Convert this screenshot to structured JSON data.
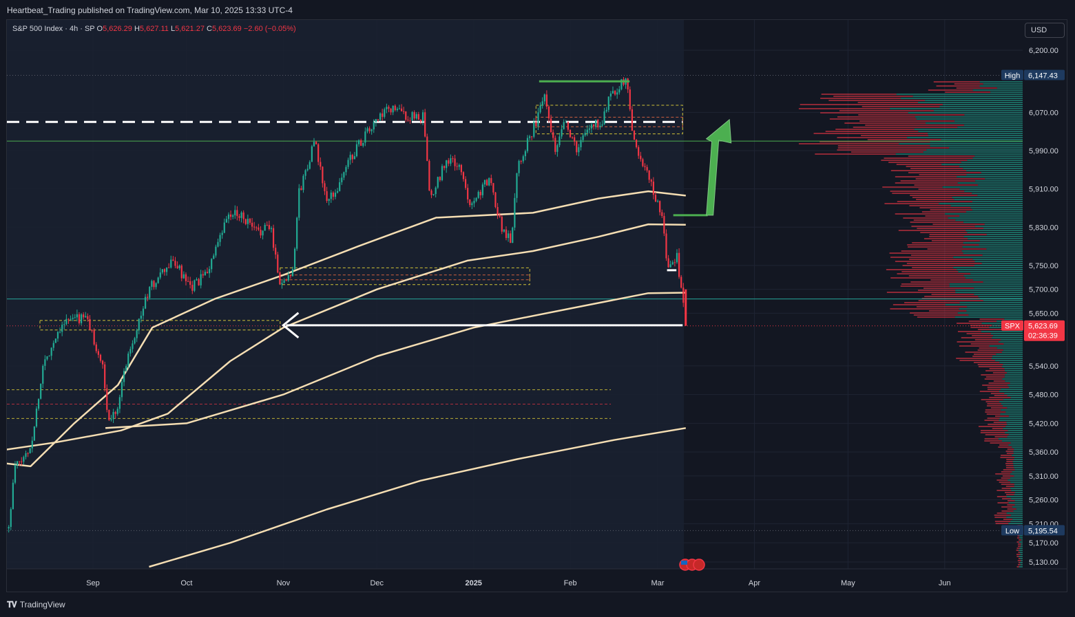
{
  "header": {
    "publisher": "Heartbeat_Trading published on TradingView.com, Mar 10, 2025 13:33 UTC-4"
  },
  "legend": {
    "symbol": "S&P 500 Index · 4h · SP",
    "open_label": "O",
    "open": "5,626.29",
    "high_label": "H",
    "high": "5,627.11",
    "low_label": "L",
    "low": "5,621.27",
    "close_label": "C",
    "close": "5,623.69",
    "change": "−2.60 (−0.05%)"
  },
  "currency_button": "USD",
  "footer": {
    "brand": "TradingView",
    "logo_icon": "tradingview-logo-icon"
  },
  "colors": {
    "up": "#22ab94",
    "down": "#f23645",
    "ma": "#f5deb3",
    "arrow": "#4caf50",
    "price_tag": "#f23645",
    "high_low_tag": "#1e3a5f"
  },
  "chart_data": {
    "type": "candlestick",
    "x_ticks": [
      "Sep",
      "Oct",
      "Nov",
      "Dec",
      "2025",
      "Feb",
      "Mar",
      "Apr",
      "May",
      "Jun"
    ],
    "y_ticks": [
      6200,
      6070,
      5990,
      5910,
      5830,
      5750,
      5700,
      5650,
      5540,
      5480,
      5420,
      5360,
      5310,
      5260,
      5210,
      5170,
      5130
    ],
    "y_tick_labels": [
      "6,200.00",
      "6,070.00",
      "5,990.00",
      "5,910.00",
      "5,830.00",
      "5,750.00",
      "5,700.00",
      "5,650.00",
      "5,540.00",
      "5,480.00",
      "5,420.00",
      "5,360.00",
      "5,310.00",
      "5,260.00",
      "5,210.00",
      "5,170.00",
      "5,130.00"
    ],
    "ylim": [
      5110,
      6230
    ],
    "high": {
      "label": "High",
      "value": "6,147.43"
    },
    "low": {
      "label": "Low",
      "value": "5,195.54"
    },
    "last_price": {
      "symbol": "SPX",
      "value": "5,623.69",
      "countdown": "02:36:39"
    },
    "price_path": [
      [
        "Aug 5",
        5200
      ],
      [
        "Aug 7",
        5330
      ],
      [
        "Aug 9",
        5340
      ],
      [
        "Aug 12",
        5370
      ],
      [
        "Aug 14",
        5450
      ],
      [
        "Aug 16",
        5540
      ],
      [
        "Aug 20",
        5600
      ],
      [
        "Aug 22",
        5630
      ],
      [
        "Aug 27",
        5640
      ],
      [
        "Aug 30",
        5640
      ],
      [
        "Sep 4",
        5540
      ],
      [
        "Sep 6",
        5420
      ],
      [
        "Sep 9",
        5460
      ],
      [
        "Sep 12",
        5560
      ],
      [
        "Sep 16",
        5640
      ],
      [
        "Sep 19",
        5700
      ],
      [
        "Sep 24",
        5740
      ],
      [
        "Sep 27",
        5760
      ],
      [
        "Oct 2",
        5700
      ],
      [
        "Oct 7",
        5730
      ],
      [
        "Oct 11",
        5790
      ],
      [
        "Oct 14",
        5850
      ],
      [
        "Oct 18",
        5860
      ],
      [
        "Oct 23",
        5820
      ],
      [
        "Oct 28",
        5830
      ],
      [
        "Oct 31",
        5710
      ],
      [
        "Nov 4",
        5740
      ],
      [
        "Nov 6",
        5900
      ],
      [
        "Nov 11",
        6010
      ],
      [
        "Nov 15",
        5880
      ],
      [
        "Nov 19",
        5920
      ],
      [
        "Nov 22",
        5970
      ],
      [
        "Nov 27",
        6020
      ],
      [
        "Dec 2",
        6060
      ],
      [
        "Dec 6",
        6080
      ],
      [
        "Dec 11",
        6060
      ],
      [
        "Dec 16",
        6060
      ],
      [
        "Dec 18",
        5880
      ],
      [
        "Dec 23",
        5970
      ],
      [
        "Dec 27",
        5960
      ],
      [
        "Dec 31",
        5880
      ],
      [
        "Jan 6",
        5930
      ],
      [
        "Jan 10",
        5830
      ],
      [
        "Jan 13",
        5800
      ],
      [
        "Jan 15",
        5960
      ],
      [
        "Jan 21",
        6050
      ],
      [
        "Jan 24",
        6110
      ],
      [
        "Jan 27",
        5990
      ],
      [
        "Jan 30",
        6060
      ],
      [
        "Feb 3",
        5990
      ],
      [
        "Feb 7",
        6040
      ],
      [
        "Feb 11",
        6050
      ],
      [
        "Feb 14",
        6110
      ],
      [
        "Feb 19",
        6140
      ],
      [
        "Feb 21",
        6020
      ],
      [
        "Feb 25",
        5950
      ],
      [
        "Feb 28",
        5900
      ],
      [
        "Mar 3",
        5830
      ],
      [
        "Mar 4",
        5750
      ],
      [
        "Mar 6",
        5750
      ],
      [
        "Mar 7",
        5780
      ],
      [
        "Mar 10",
        5623
      ]
    ],
    "moving_averages": [
      {
        "points": [
          [
            "Jul 30",
            5340
          ],
          [
            "Aug 12",
            5330
          ],
          [
            "Aug 26",
            5420
          ],
          [
            "Sep 9",
            5500
          ],
          [
            "Sep 20",
            5620
          ],
          [
            "Oct 10",
            5680
          ],
          [
            "Nov 1",
            5730
          ],
          [
            "Nov 25",
            5790
          ],
          [
            "Dec 20",
            5850
          ],
          [
            "Jan 20",
            5860
          ],
          [
            "Feb 10",
            5890
          ],
          [
            "Feb 26",
            5905
          ],
          [
            "Mar 10",
            5896
          ]
        ]
      },
      {
        "points": [
          [
            "Jul 30",
            5360
          ],
          [
            "Aug 20",
            5380
          ],
          [
            "Sep 10",
            5405
          ],
          [
            "Sep 25",
            5440
          ],
          [
            "Oct 15",
            5550
          ],
          [
            "Nov 1",
            5620
          ],
          [
            "Dec 1",
            5700
          ],
          [
            "Dec 30",
            5760
          ],
          [
            "Jan 20",
            5780
          ],
          [
            "Feb 10",
            5810
          ],
          [
            "Feb 26",
            5836
          ],
          [
            "Mar 10",
            5835
          ]
        ]
      },
      {
        "points": [
          [
            "Sep 5",
            5410
          ],
          [
            "Oct 1",
            5420
          ],
          [
            "Nov 1",
            5480
          ],
          [
            "Dec 1",
            5560
          ],
          [
            "Jan 1",
            5620
          ],
          [
            "Feb 1",
            5660
          ],
          [
            "Feb 26",
            5692
          ],
          [
            "Mar 10",
            5693
          ]
        ]
      },
      {
        "points": [
          [
            "Sep 19",
            5120
          ],
          [
            "Oct 15",
            5170
          ],
          [
            "Nov 15",
            5240
          ],
          [
            "Dec 15",
            5300
          ],
          [
            "Jan 15",
            5345
          ],
          [
            "Feb 15",
            5385
          ],
          [
            "Mar 10",
            5410
          ]
        ]
      }
    ],
    "levels": [
      {
        "style": "dashed-white",
        "value": 6050
      },
      {
        "style": "solid-green",
        "value": 6010
      },
      {
        "style": "solid-teal",
        "value": 5680
      }
    ],
    "annotations": [
      {
        "type": "arrow-left",
        "from": [
          "Mar 9",
          5625
        ],
        "to": [
          "Nov 1",
          5625
        ]
      },
      {
        "type": "arrow-up",
        "from": [
          "Mar 6",
          5855
        ],
        "to": [
          "Mar 24",
          6055
        ]
      },
      {
        "type": "hline-green",
        "from": [
          "Jan 22",
          6135
        ],
        "to": [
          "Feb 20",
          6135
        ]
      },
      {
        "type": "hline-white",
        "from": [
          "Mar 4",
          5740
        ],
        "to": [
          "Mar 7",
          5740
        ]
      }
    ]
  }
}
